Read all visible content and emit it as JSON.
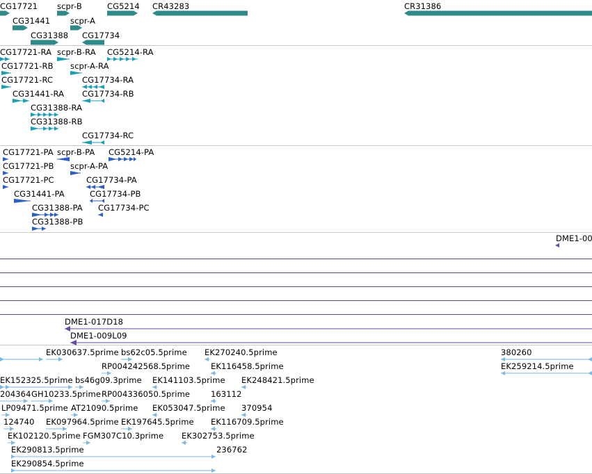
{
  "tracks": {
    "genes": {
      "labels": [
        "CG17721",
        "scpr-B",
        "CG5214",
        "CR43283",
        "CR31386",
        "CG31441",
        "scpr-A",
        "CG31388",
        "CG17734"
      ],
      "color": "#2e8a8a"
    },
    "transcripts": {
      "labels": [
        "CG17721-RA",
        "scpr-B-RA",
        "CG5214-RA",
        "CG17721-RB",
        "scpr-A-RA",
        "CG17721-RC",
        "CG31441-RA",
        "CG17734-RA",
        "CG17734-RB",
        "CG31388-RA",
        "CG31388-RB",
        "CG17734-RC"
      ],
      "color": "#1aa0b4"
    },
    "proteins": {
      "labels": [
        "CG17721-PA",
        "scpr-B-PA",
        "CG5214-PA",
        "CG17721-PB",
        "scpr-A-PA",
        "CG17721-PC",
        "CG17734-PA",
        "CG31441-PA",
        "CG17734-PB",
        "CG31388-PA",
        "CG17734-PC",
        "CG31388-PB"
      ],
      "color": "#2a5fc8"
    },
    "clones": {
      "labels": [
        "DME1-00",
        "DME1-017D18",
        "DME1-009L09"
      ],
      "color": "#6a4aa6"
    },
    "ests": {
      "labels": [
        "EK030637.5prime",
        "bs62c05.5prime",
        "EK270240.5prime",
        "380260",
        "RP004242568.5prime",
        "EK116458.5prime",
        "EK259214.5prime",
        "EK152325.5prime",
        "bs46g09.3prime",
        "EK141103.5prime",
        "EK248421.5prime",
        "204364",
        "GH10233.5prime",
        "RP004336050.5prime",
        "163112",
        "LP09471.5prime",
        "AT21090.5prime",
        "EK053047.5prime",
        "370954",
        "124740",
        "EK097964.5prime",
        "EK197645.5prime",
        "EK116709.5prime",
        "EK102120.5prime",
        "FGM307C10.3prime",
        "EK302753.5prime",
        "EK290813.5prime",
        "236762",
        "EK290854.5prime"
      ],
      "color": "#7db8e0"
    }
  }
}
